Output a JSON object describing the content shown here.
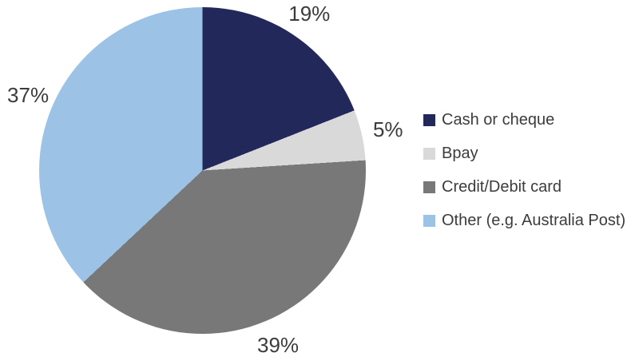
{
  "colors": {
    "background": "#ffffff",
    "text": "#3c3c3c"
  },
  "chart_data": {
    "type": "pie",
    "title": "",
    "start_angle_deg": 0,
    "direction": "clockwise",
    "legend_position": "right",
    "data_labels_position": "outside-end",
    "slices": [
      {
        "label": "Cash or cheque",
        "value": 19,
        "display": "19%",
        "color": "#23285A"
      },
      {
        "label": "Bpay",
        "value": 5,
        "display": "5%",
        "color": "#D9D9D9"
      },
      {
        "label": "Credit/Debit card",
        "value": 39,
        "display": "39%",
        "color": "#787878"
      },
      {
        "label": "Other (e.g. Australia Post)",
        "value": 37,
        "display": "37%",
        "color": "#9CC3E5"
      }
    ]
  }
}
